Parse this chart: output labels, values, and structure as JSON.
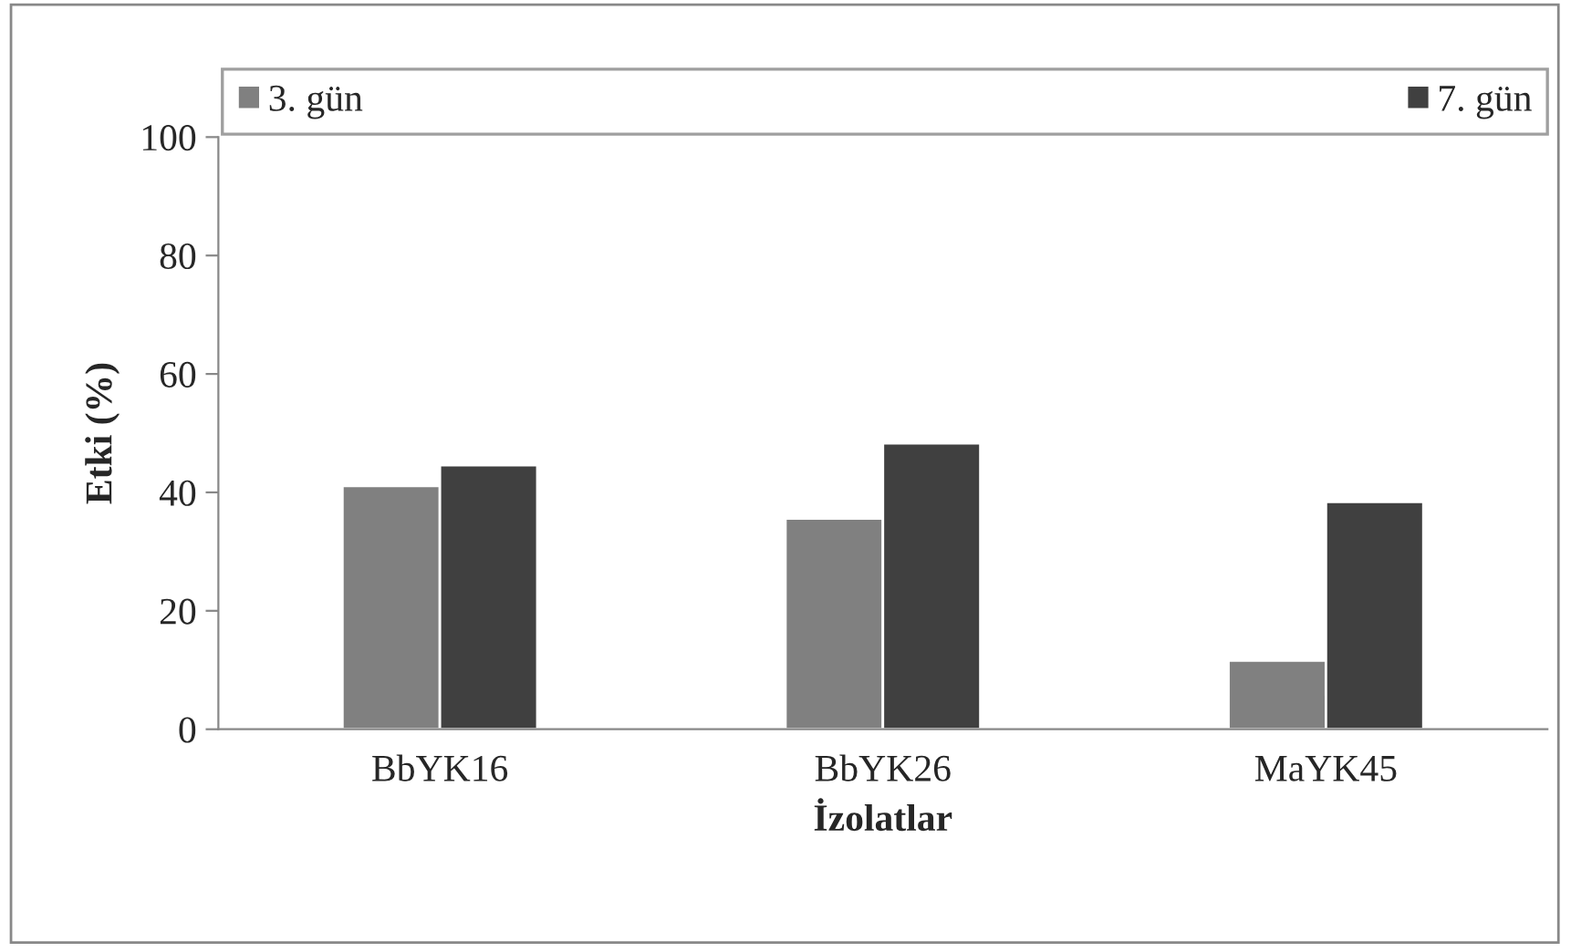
{
  "chart_data": {
    "type": "bar",
    "xlabel": "İzolatlar",
    "ylabel": "Etki (%)",
    "categories": [
      "BbYK16",
      "BbYK26",
      "MaYK45"
    ],
    "series": [
      {
        "name": "3. gün",
        "color": "#808080",
        "values": [
          41.1,
          35.6,
          11.6
        ]
      },
      {
        "name": "7. gün",
        "color": "#404040",
        "values": [
          44.6,
          48.3,
          38.4
        ]
      }
    ],
    "ylim": [
      0,
      100
    ],
    "yticks": [
      0,
      20,
      40,
      60,
      80,
      100
    ],
    "grid": false,
    "legend": "top"
  }
}
